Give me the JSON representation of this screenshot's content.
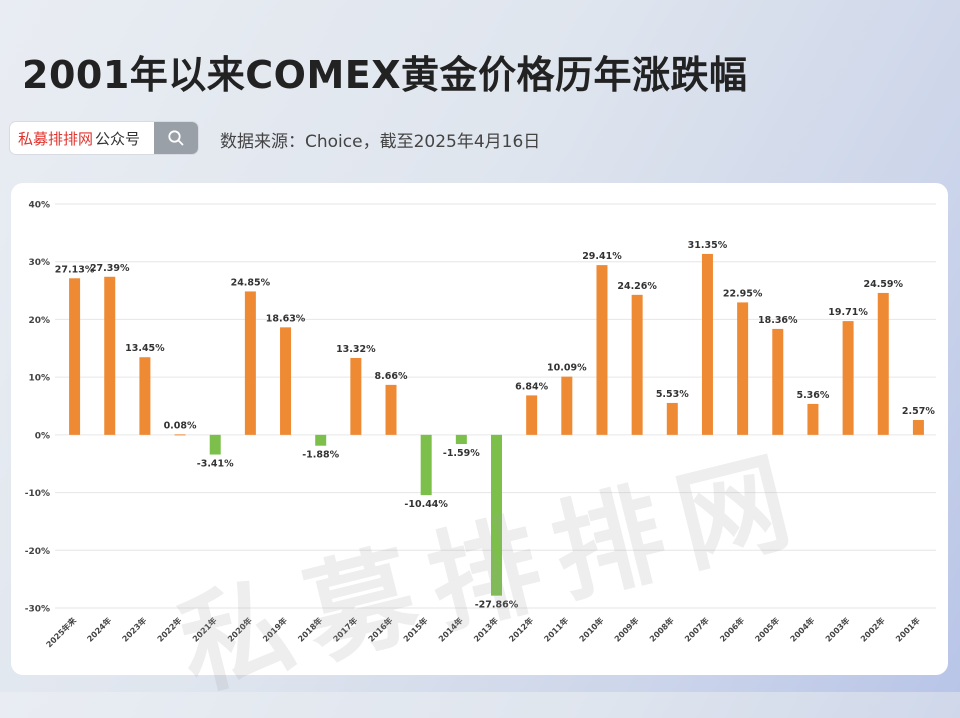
{
  "header": {
    "title": "2001年以来COMEX黄金价格历年涨跌幅",
    "search_brand": "私募排排网",
    "search_suffix": "公众号",
    "source": "数据来源：Choice，截至2025年4月16日"
  },
  "watermark": "私募排排网",
  "colors": {
    "positive": "#ef8a34",
    "negative": "#7cc04b",
    "grid": "#e6e6e6"
  },
  "chart_data": {
    "type": "bar",
    "title": "2001年以来COMEX黄金价格历年涨跌幅",
    "categories": [
      "2025年来",
      "2024年",
      "2023年",
      "2022年",
      "2021年",
      "2020年",
      "2019年",
      "2018年",
      "2017年",
      "2016年",
      "2015年",
      "2014年",
      "2013年",
      "2012年",
      "2011年",
      "2010年",
      "2009年",
      "2008年",
      "2007年",
      "2006年",
      "2005年",
      "2004年",
      "2003年",
      "2002年",
      "2001年"
    ],
    "values": [
      27.13,
      27.39,
      13.45,
      0.08,
      -3.41,
      24.85,
      18.63,
      -1.88,
      13.32,
      8.66,
      -10.44,
      -1.59,
      -27.86,
      6.84,
      10.09,
      29.41,
      24.26,
      5.53,
      31.35,
      22.95,
      18.36,
      5.36,
      19.71,
      24.59,
      2.57
    ],
    "labels": [
      "27.13%",
      "27.39%",
      "13.45%",
      "0.08%",
      "-3.41%",
      "24.85%",
      "18.63%",
      "-1.88%",
      "13.32%",
      "8.66%",
      "-10.44%",
      "-1.59%",
      "-27.86%",
      "6.84%",
      "10.09%",
      "29.41%",
      "24.26%",
      "5.53%",
      "31.35%",
      "22.95%",
      "18.36%",
      "5.36%",
      "19.71%",
      "24.59%",
      "2.57%"
    ],
    "yticks": [
      "40%",
      "30%",
      "20%",
      "10%",
      "0%",
      "-10%",
      "-20%",
      "-30%"
    ],
    "ylim": [
      -30,
      40
    ],
    "grid": true,
    "unit": "%"
  }
}
